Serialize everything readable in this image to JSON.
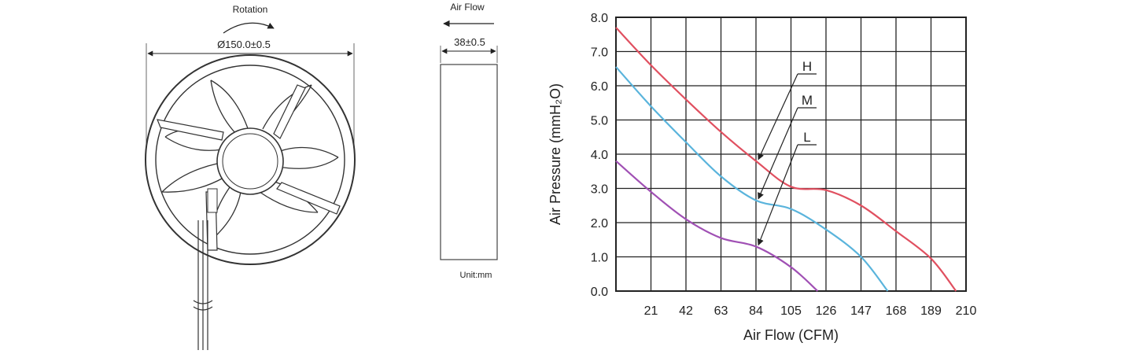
{
  "front_view": {
    "rotation_label": "Rotation",
    "diameter_label": "Ø150.0±0.5"
  },
  "side_view": {
    "airflow_label": "Air Flow",
    "thickness_label": "38±0.5",
    "unit_label": "Unit:mm"
  },
  "chart_data": {
    "type": "line",
    "xlabel": "Air Flow (CFM)",
    "ylabel": "Air Pressure (mmH₂O)",
    "xlim": [
      0,
      210
    ],
    "ylim": [
      0,
      8
    ],
    "grid": true,
    "x_ticks": [
      21,
      42,
      63,
      84,
      105,
      126,
      147,
      168,
      189,
      210
    ],
    "y_ticks": [
      0,
      1,
      2,
      3,
      4,
      5,
      6,
      7,
      8
    ],
    "y_tick_labels": [
      "0.0",
      "1.0",
      "2.0",
      "3.0",
      "4.0",
      "5.0",
      "6.0",
      "7.0",
      "8.0"
    ],
    "series": [
      {
        "name": "H",
        "color": "#e05060",
        "points": [
          [
            0,
            7.7
          ],
          [
            21,
            6.6
          ],
          [
            42,
            5.6
          ],
          [
            63,
            4.65
          ],
          [
            84,
            3.8
          ],
          [
            105,
            3.05
          ],
          [
            126,
            2.95
          ],
          [
            147,
            2.5
          ],
          [
            168,
            1.75
          ],
          [
            189,
            0.95
          ],
          [
            204,
            0
          ]
        ]
      },
      {
        "name": "M",
        "color": "#5ab4dc",
        "points": [
          [
            0,
            6.55
          ],
          [
            21,
            5.4
          ],
          [
            42,
            4.35
          ],
          [
            63,
            3.35
          ],
          [
            84,
            2.65
          ],
          [
            105,
            2.4
          ],
          [
            126,
            1.8
          ],
          [
            147,
            1.0
          ],
          [
            163,
            0
          ]
        ]
      },
      {
        "name": "L",
        "color": "#a050b4",
        "points": [
          [
            0,
            3.8
          ],
          [
            21,
            2.9
          ],
          [
            42,
            2.1
          ],
          [
            63,
            1.55
          ],
          [
            84,
            1.3
          ],
          [
            105,
            0.7
          ],
          [
            121,
            0
          ]
        ]
      }
    ]
  }
}
